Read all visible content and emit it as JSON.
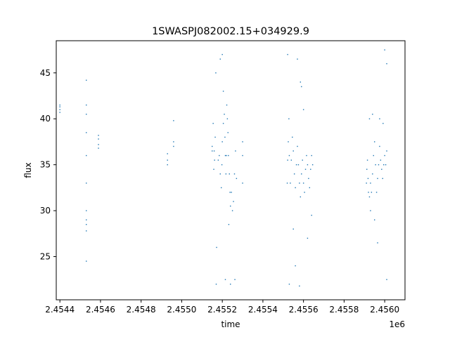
{
  "chart_data": {
    "type": "scatter",
    "title": "1SWASPJ082002.15+034929.9",
    "xlabel": "time",
    "ylabel": "flux",
    "x_offset_label": "1e6",
    "xlim": [
      2454382,
      2456100
    ],
    "ylim": [
      20.3,
      48.5
    ],
    "x_ticks": [
      2454400,
      2454600,
      2454800,
      2455000,
      2455200,
      2455400,
      2455600,
      2455800,
      2456000
    ],
    "x_tick_labels": [
      "2.4544",
      "2.4546",
      "2.4548",
      "2.4550",
      "2.4552",
      "2.4554",
      "2.4556",
      "2.4558",
      "2.4560"
    ],
    "y_ticks": [
      25,
      30,
      35,
      40,
      45
    ],
    "y_tick_labels": [
      "25",
      "30",
      "35",
      "40",
      "45"
    ],
    "grid": false,
    "marker_color": "#1f77b4",
    "series": [
      {
        "values": [
          [
            2454400,
            41.3
          ],
          [
            2454400,
            41.0
          ],
          [
            2454400,
            40.7
          ],
          [
            2454400,
            41.5
          ],
          [
            2454530,
            28.5
          ],
          [
            2454530,
            29.0
          ],
          [
            2454530,
            27.8
          ],
          [
            2454530,
            30.0
          ],
          [
            2454530,
            40.5
          ],
          [
            2454530,
            41.5
          ],
          [
            2454530,
            44.2
          ],
          [
            2454530,
            24.5
          ],
          [
            2454530,
            33.0
          ],
          [
            2454530,
            36.0
          ],
          [
            2454530,
            38.5
          ],
          [
            2454590,
            37.8
          ],
          [
            2454590,
            38.2
          ],
          [
            2454590,
            37.2
          ],
          [
            2454590,
            36.8
          ],
          [
            2454930,
            35.5
          ],
          [
            2454930,
            36.2
          ],
          [
            2454930,
            35.0
          ],
          [
            2454960,
            37.0
          ],
          [
            2454960,
            37.5
          ],
          [
            2454960,
            39.8
          ],
          [
            2455150,
            36.5
          ],
          [
            2455150,
            37.0
          ],
          [
            2455155,
            39.5
          ],
          [
            2455158,
            34.5
          ],
          [
            2455160,
            36.5
          ],
          [
            2455162,
            35.5
          ],
          [
            2455165,
            38.0
          ],
          [
            2455168,
            45.0
          ],
          [
            2455170,
            22.0
          ],
          [
            2455172,
            26.0
          ],
          [
            2455180,
            35.5
          ],
          [
            2455185,
            36.0
          ],
          [
            2455190,
            34.0
          ],
          [
            2455195,
            32.5
          ],
          [
            2455198,
            35.0
          ],
          [
            2455200,
            37.5
          ],
          [
            2455205,
            39.5
          ],
          [
            2455210,
            40.5
          ],
          [
            2455213,
            38.0
          ],
          [
            2455215,
            36.0
          ],
          [
            2455218,
            34.0
          ],
          [
            2455220,
            36.0
          ],
          [
            2455225,
            40.0
          ],
          [
            2455228,
            38.5
          ],
          [
            2455230,
            36.0
          ],
          [
            2455235,
            34.0
          ],
          [
            2455238,
            32.0
          ],
          [
            2455240,
            30.5
          ],
          [
            2455245,
            32.0
          ],
          [
            2455250,
            30.0
          ],
          [
            2455255,
            31.0
          ],
          [
            2455260,
            34.0
          ],
          [
            2455265,
            36.5
          ],
          [
            2455270,
            33.5
          ],
          [
            2455190,
            46.5
          ],
          [
            2455200,
            47.0
          ],
          [
            2455215,
            22.5
          ],
          [
            2455240,
            22.0
          ],
          [
            2455262,
            22.5
          ],
          [
            2455205,
            43.0
          ],
          [
            2455222,
            41.5
          ],
          [
            2455232,
            28.5
          ],
          [
            2455300,
            36.0
          ],
          [
            2455300,
            33.0
          ],
          [
            2455300,
            37.5
          ],
          [
            2455520,
            33.0
          ],
          [
            2455522,
            35.5
          ],
          [
            2455525,
            37.5
          ],
          [
            2455528,
            40.0
          ],
          [
            2455530,
            36.0
          ],
          [
            2455535,
            33.0
          ],
          [
            2455540,
            35.5
          ],
          [
            2455545,
            38.0
          ],
          [
            2455550,
            36.5
          ],
          [
            2455555,
            34.0
          ],
          [
            2455560,
            32.5
          ],
          [
            2455565,
            35.0
          ],
          [
            2455570,
            37.0
          ],
          [
            2455575,
            35.0
          ],
          [
            2455580,
            33.0
          ],
          [
            2455585,
            31.5
          ],
          [
            2455590,
            34.0
          ],
          [
            2455595,
            35.5
          ],
          [
            2455600,
            33.0
          ],
          [
            2455605,
            32.0
          ],
          [
            2455610,
            34.5
          ],
          [
            2455615,
            36.0
          ],
          [
            2455620,
            35.0
          ],
          [
            2455625,
            33.5
          ],
          [
            2455630,
            32.5
          ],
          [
            2455635,
            34.5
          ],
          [
            2455640,
            36.0
          ],
          [
            2455645,
            35.0
          ],
          [
            2455522,
            47.0
          ],
          [
            2455530,
            22.0
          ],
          [
            2455570,
            46.5
          ],
          [
            2455580,
            21.8
          ],
          [
            2455585,
            44.0
          ],
          [
            2455550,
            28.0
          ],
          [
            2455600,
            41.0
          ],
          [
            2455620,
            27.0
          ],
          [
            2455590,
            43.5
          ],
          [
            2455560,
            24.0
          ],
          [
            2455640,
            29.5
          ],
          [
            2455910,
            33.0
          ],
          [
            2455912,
            34.5
          ],
          [
            2455915,
            35.5
          ],
          [
            2455918,
            33.5
          ],
          [
            2455920,
            32.0
          ],
          [
            2455925,
            31.5
          ],
          [
            2455930,
            33.0
          ],
          [
            2455935,
            32.0
          ],
          [
            2455940,
            34.0
          ],
          [
            2455945,
            36.0
          ],
          [
            2455950,
            37.5
          ],
          [
            2455955,
            35.0
          ],
          [
            2455960,
            32.0
          ],
          [
            2455965,
            33.5
          ],
          [
            2455970,
            35.0
          ],
          [
            2455975,
            37.0
          ],
          [
            2455980,
            35.5
          ],
          [
            2455985,
            34.5
          ],
          [
            2455990,
            33.5
          ],
          [
            2455995,
            35.0
          ],
          [
            2456000,
            36.0
          ],
          [
            2456005,
            35.0
          ],
          [
            2456010,
            36.5
          ],
          [
            2455925,
            40.0
          ],
          [
            2455940,
            40.5
          ],
          [
            2455965,
            26.5
          ],
          [
            2456000,
            47.5
          ],
          [
            2456010,
            46.0
          ],
          [
            2456010,
            22.5
          ],
          [
            2455975,
            40.0
          ],
          [
            2455950,
            29.0
          ],
          [
            2455992,
            39.5
          ],
          [
            2455930,
            30.0
          ]
        ]
      }
    ]
  }
}
